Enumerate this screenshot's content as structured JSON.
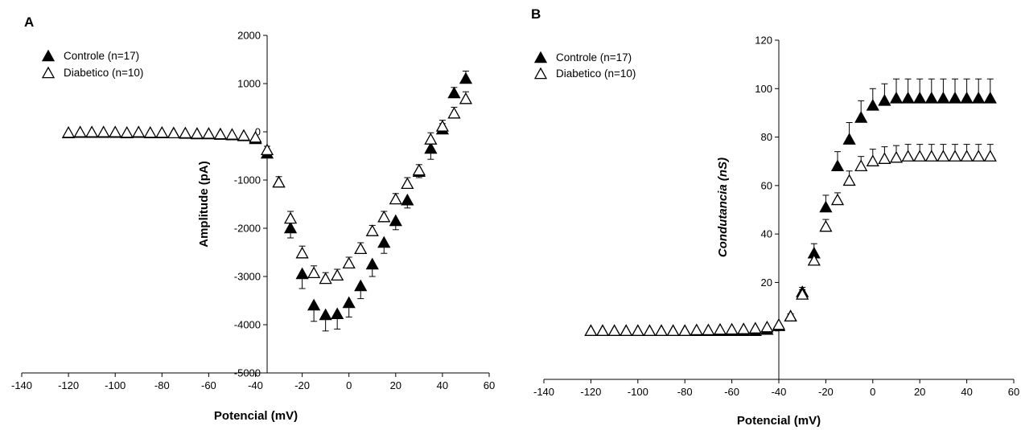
{
  "chart_data": [
    {
      "panel": "A",
      "type": "scatter",
      "xlabel": "Potencial (mV)",
      "ylabel": "Amplitude (pA)",
      "xlim": [
        -140,
        60
      ],
      "ylim": [
        -5000,
        2000
      ],
      "xticks": [
        -140,
        -120,
        -100,
        -80,
        -60,
        -40,
        -20,
        0,
        20,
        40,
        60
      ],
      "yticks": [
        -5000,
        -4000,
        -3000,
        -2000,
        -1000,
        0,
        1000,
        2000
      ],
      "legend_position": "top-left",
      "series": [
        {
          "name": "Controle (n=17)",
          "marker": "filled-triangle",
          "x": [
            -120,
            -115,
            -110,
            -105,
            -100,
            -95,
            -90,
            -85,
            -80,
            -75,
            -70,
            -65,
            -60,
            -55,
            -50,
            -45,
            -40,
            -35,
            -30,
            -25,
            -20,
            -15,
            -10,
            -5,
            0,
            5,
            10,
            15,
            20,
            25,
            30,
            35,
            40,
            45,
            50
          ],
          "y": [
            -30,
            -20,
            -20,
            -20,
            -20,
            -30,
            -20,
            -30,
            -30,
            -30,
            -40,
            -50,
            -50,
            -60,
            -70,
            -90,
            -150,
            -450,
            -1050,
            -2000,
            -2950,
            -3600,
            -3800,
            -3780,
            -3550,
            -3200,
            -2750,
            -2300,
            -1850,
            -1420,
            -830,
            -350,
            50,
            800,
            1100
          ],
          "err": [
            0,
            0,
            0,
            0,
            0,
            0,
            0,
            0,
            0,
            0,
            0,
            0,
            0,
            0,
            0,
            0,
            0,
            60,
            0,
            200,
            300,
            330,
            330,
            310,
            290,
            260,
            250,
            220,
            180,
            160,
            120,
            220,
            120,
            120,
            160
          ]
        },
        {
          "name": "Diabetico (n=10)",
          "marker": "open-triangle",
          "x": [
            -120,
            -115,
            -110,
            -105,
            -100,
            -95,
            -90,
            -85,
            -80,
            -75,
            -70,
            -65,
            -60,
            -55,
            -50,
            -45,
            -40,
            -35,
            -30,
            -25,
            -20,
            -15,
            -10,
            -5,
            0,
            5,
            10,
            15,
            20,
            25,
            30,
            35,
            40,
            45,
            50
          ],
          "y": [
            -20,
            -10,
            -10,
            -10,
            -10,
            -20,
            -10,
            -20,
            -20,
            -30,
            -30,
            -40,
            -40,
            -50,
            -60,
            -80,
            -120,
            -380,
            -1050,
            -1800,
            -2520,
            -2930,
            -3050,
            -2980,
            -2730,
            -2430,
            -2060,
            -1770,
            -1400,
            -1080,
            -800,
            -160,
            110,
            380,
            680
          ],
          "err": [
            0,
            0,
            0,
            0,
            0,
            0,
            0,
            0,
            0,
            0,
            0,
            0,
            0,
            0,
            0,
            0,
            0,
            80,
            120,
            150,
            150,
            150,
            130,
            130,
            130,
            130,
            120,
            120,
            120,
            130,
            120,
            140,
            130,
            130,
            150
          ]
        }
      ]
    },
    {
      "panel": "B",
      "type": "scatter",
      "xlabel": "Potencial (mV)",
      "ylabel": "Condutancia (nS)",
      "xlim": [
        -140,
        60
      ],
      "ylim": [
        -20,
        120
      ],
      "xticks": [
        -140,
        -120,
        -100,
        -80,
        -60,
        -40,
        -20,
        0,
        20,
        40,
        60
      ],
      "yticks": [
        0,
        20,
        40,
        60,
        80,
        100,
        120
      ],
      "legend_position": "top-left",
      "series": [
        {
          "name": "Controle  (n=17)",
          "marker": "filled-triangle",
          "x": [
            -120,
            -115,
            -110,
            -105,
            -100,
            -95,
            -90,
            -85,
            -80,
            -75,
            -70,
            -65,
            -60,
            -55,
            -50,
            -45,
            -40,
            -35,
            -30,
            -25,
            -20,
            -15,
            -10,
            -5,
            0,
            5,
            10,
            15,
            20,
            25,
            30,
            35,
            40,
            45,
            50
          ],
          "y": [
            0,
            0,
            0,
            0,
            0,
            0,
            0,
            0,
            0,
            0,
            0,
            0,
            0,
            0,
            0,
            0.5,
            2,
            6,
            16,
            32,
            51,
            68,
            79,
            88,
            93,
            95,
            96,
            96,
            96,
            96,
            96,
            96,
            96,
            96,
            96
          ],
          "err": [
            0,
            0,
            0,
            0,
            0,
            0,
            0,
            0,
            0,
            0,
            0,
            0,
            0,
            0,
            0,
            0,
            0,
            1,
            2,
            4,
            5,
            6,
            7,
            7,
            7,
            7,
            8,
            8,
            8,
            8,
            8,
            8,
            8,
            8,
            8
          ]
        },
        {
          "name": "Diabetico (n=10)",
          "marker": "open-triangle",
          "x": [
            -120,
            -115,
            -110,
            -105,
            -100,
            -95,
            -90,
            -85,
            -80,
            -75,
            -70,
            -65,
            -60,
            -55,
            -50,
            -45,
            -40,
            -35,
            -30,
            -25,
            -20,
            -15,
            -10,
            -5,
            0,
            5,
            10,
            15,
            20,
            25,
            30,
            35,
            40,
            45,
            50
          ],
          "y": [
            0,
            0,
            0,
            0,
            0,
            0,
            0,
            0,
            0,
            0.3,
            0.3,
            0.5,
            0.6,
            0.7,
            1,
            1.5,
            2.5,
            6,
            15,
            29,
            43,
            54,
            62,
            68,
            70,
            71,
            71.5,
            72,
            72,
            72,
            72,
            72,
            72,
            72,
            72
          ],
          "err": [
            0,
            0,
            0,
            0,
            0,
            0,
            0,
            0,
            0,
            0,
            0,
            0,
            0,
            0,
            0,
            0,
            0,
            1,
            2,
            3,
            3,
            3,
            4,
            4,
            5,
            5,
            5,
            5,
            5,
            5,
            5,
            5,
            5,
            5,
            5
          ]
        }
      ]
    }
  ]
}
